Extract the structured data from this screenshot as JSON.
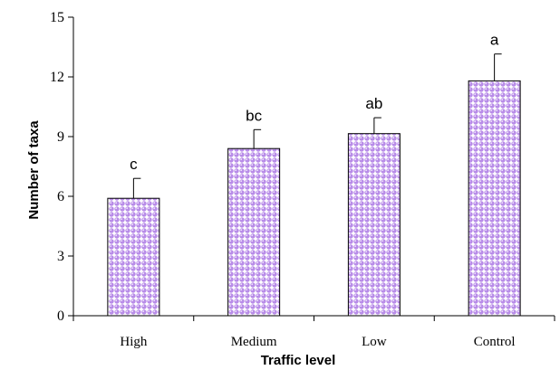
{
  "chart_data": {
    "type": "bar",
    "categories": [
      "High",
      "Medium",
      "Low",
      "Control"
    ],
    "values": [
      5.9,
      8.4,
      9.15,
      11.8
    ],
    "error": [
      1.0,
      0.95,
      0.8,
      1.35
    ],
    "significance_labels": [
      "c",
      "bc",
      "ab",
      "a"
    ],
    "title": "",
    "xlabel": "Traffic level",
    "ylabel": "Number of taxa",
    "ylim": [
      0,
      15
    ],
    "yticks": [
      0,
      3,
      6,
      9,
      12,
      15
    ],
    "ytick_labels": [
      "0",
      "3",
      "6",
      "9",
      "12",
      "15"
    ],
    "grid": false,
    "colors": {
      "bar_fill": "#ffffff",
      "bar_pattern_dot": "#b88ce8",
      "bar_pattern_highlight": "#efe3fb",
      "bar_outline": "#000000",
      "axis": "#000000"
    }
  }
}
